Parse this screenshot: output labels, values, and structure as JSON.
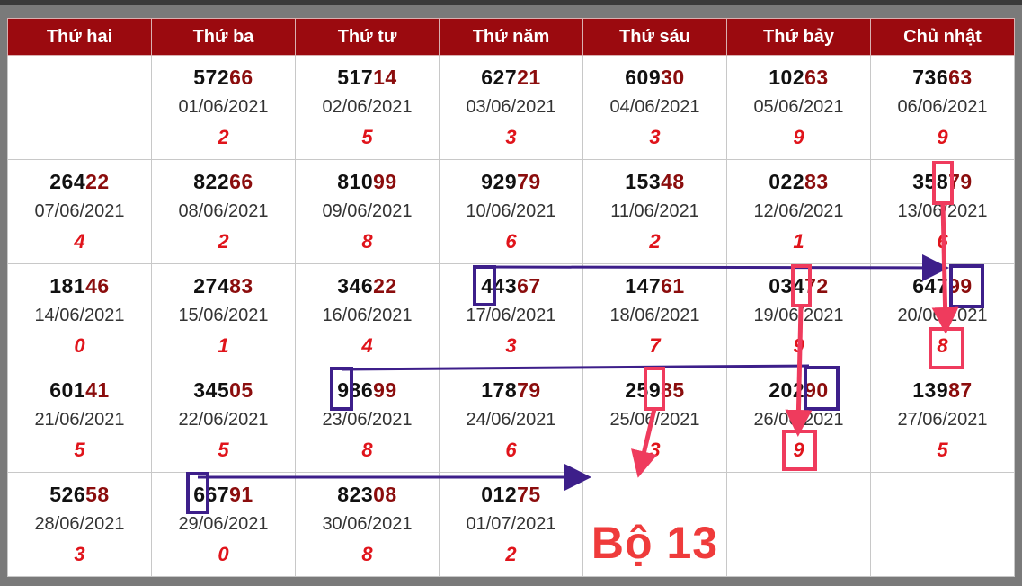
{
  "headers": [
    "Thứ hai",
    "Thứ ba",
    "Thứ tư",
    "Thứ năm",
    "Thứ sáu",
    "Thứ bảy",
    "Chủ nhật"
  ],
  "rows": [
    [
      {
        "empty": true
      },
      {
        "head": "572",
        "tail": "66",
        "date": "01/06/2021",
        "sum": "2"
      },
      {
        "head": "517",
        "tail": "14",
        "date": "02/06/2021",
        "sum": "5"
      },
      {
        "head": "627",
        "tail": "21",
        "date": "03/06/2021",
        "sum": "3"
      },
      {
        "head": "609",
        "tail": "30",
        "date": "04/06/2021",
        "sum": "3"
      },
      {
        "head": "102",
        "tail": "63",
        "date": "05/06/2021",
        "sum": "9"
      },
      {
        "head": "736",
        "tail": "63",
        "date": "06/06/2021",
        "sum": "9"
      }
    ],
    [
      {
        "head": "264",
        "tail": "22",
        "date": "07/06/2021",
        "sum": "4"
      },
      {
        "head": "822",
        "tail": "66",
        "date": "08/06/2021",
        "sum": "2"
      },
      {
        "head": "810",
        "tail": "99",
        "date": "09/06/2021",
        "sum": "8"
      },
      {
        "head": "929",
        "tail": "79",
        "date": "10/06/2021",
        "sum": "6"
      },
      {
        "head": "153",
        "tail": "48",
        "date": "11/06/2021",
        "sum": "2"
      },
      {
        "head": "022",
        "tail": "83",
        "date": "12/06/2021",
        "sum": "1"
      },
      {
        "head": "358",
        "tail": "79",
        "date": "13/06/2021",
        "sum": "6"
      }
    ],
    [
      {
        "head": "181",
        "tail": "46",
        "date": "14/06/2021",
        "sum": "0"
      },
      {
        "head": "274",
        "tail": "83",
        "date": "15/06/2021",
        "sum": "1"
      },
      {
        "head": "346",
        "tail": "22",
        "date": "16/06/2021",
        "sum": "4"
      },
      {
        "head": "443",
        "tail": "67",
        "date": "17/06/2021",
        "sum": "3"
      },
      {
        "head": "147",
        "tail": "61",
        "date": "18/06/2021",
        "sum": "7"
      },
      {
        "head": "034",
        "tail": "72",
        "date": "19/06/2021",
        "sum": "9"
      },
      {
        "head": "647",
        "tail": "99",
        "date": "20/06/2021",
        "sum": "8"
      }
    ],
    [
      {
        "head": "601",
        "tail": "41",
        "date": "21/06/2021",
        "sum": "5"
      },
      {
        "head": "345",
        "tail": "05",
        "date": "22/06/2021",
        "sum": "5"
      },
      {
        "head": "986",
        "tail": "99",
        "date": "23/06/2021",
        "sum": "8"
      },
      {
        "head": "178",
        "tail": "79",
        "date": "24/06/2021",
        "sum": "6"
      },
      {
        "head": "259",
        "tail": "85",
        "date": "25/06/2021",
        "sum": "3"
      },
      {
        "head": "202",
        "tail": "90",
        "date": "26/06/2021",
        "sum": "9"
      },
      {
        "head": "139",
        "tail": "87",
        "date": "27/06/2021",
        "sum": "5"
      }
    ],
    [
      {
        "head": "526",
        "tail": "58",
        "date": "28/06/2021",
        "sum": "3"
      },
      {
        "head": "667",
        "tail": "91",
        "date": "29/06/2021",
        "sum": "0"
      },
      {
        "head": "823",
        "tail": "08",
        "date": "30/06/2021",
        "sum": "8"
      },
      {
        "head": "012",
        "tail": "75",
        "date": "01/07/2021",
        "sum": "2"
      },
      {
        "label": "Bộ 13"
      },
      {
        "empty": true
      },
      {
        "empty": true
      }
    ]
  ],
  "highlighted_dates": [
    "13/06/2021",
    "17/06/2021",
    "19/06/2021",
    "20/06/2021",
    "23/06/2021",
    "25/06/2021",
    "26/06/2021",
    "29/06/2021"
  ],
  "colors": {
    "header_bg": "#9b0a0f",
    "highlight": "#ffbf00",
    "weekend": "#e2f0dc",
    "tail_digits": "#8b0d0d",
    "sum_digit": "#e0141b",
    "box_purple": "#3d1f8a",
    "arrow_pink": "#ef3b5d"
  }
}
